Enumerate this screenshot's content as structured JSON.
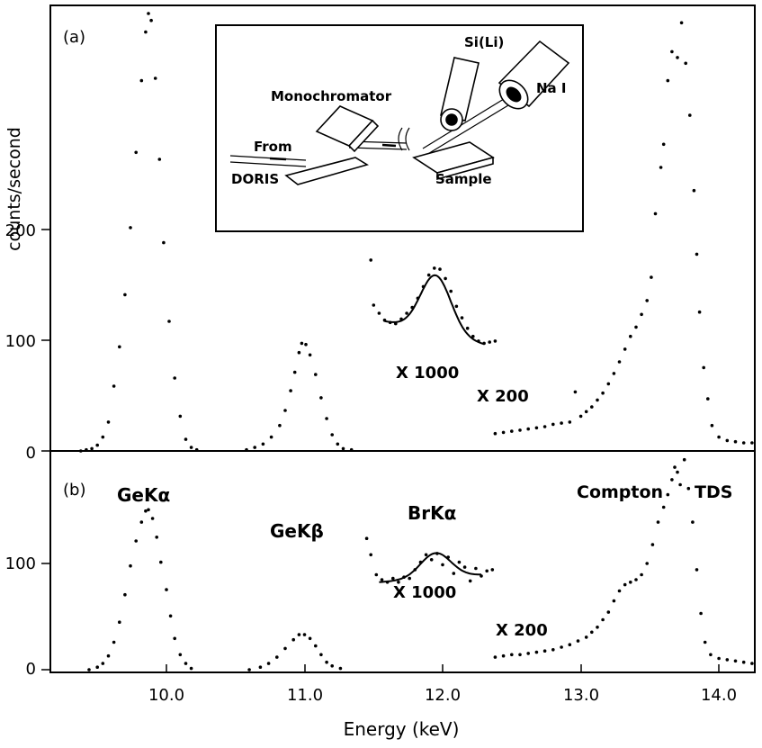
{
  "chart_data": [
    {
      "panel": "(a)",
      "type": "scatter",
      "xlabel": "",
      "ylabel": "counts/second",
      "xlim": [
        9.18,
        14.28
      ],
      "ylim": [
        0,
        385
      ],
      "yticks": [
        0,
        100,
        200
      ],
      "annotations": [
        "X 1000",
        "X 200"
      ],
      "inset_labels": {
        "from": "From",
        "doris": "DORIS",
        "monochromator": "Monochromator",
        "sample": "Sample",
        "sili": "Si(Li)",
        "nai": "Na I"
      },
      "series": [
        {
          "label": "GeKα",
          "points": [
            [
              9.4,
              0
            ],
            [
              9.44,
              1
            ],
            [
              9.48,
              2
            ],
            [
              9.52,
              5
            ],
            [
              9.56,
              12
            ],
            [
              9.6,
              25
            ],
            [
              9.64,
              56
            ],
            [
              9.68,
              90
            ],
            [
              9.72,
              135
            ],
            [
              9.76,
              193
            ],
            [
              9.8,
              258
            ],
            [
              9.84,
              320
            ],
            [
              9.87,
              362
            ],
            [
              9.89,
              378
            ],
            [
              9.91,
              372
            ],
            [
              9.94,
              322
            ],
            [
              9.97,
              252
            ],
            [
              10.0,
              180
            ],
            [
              10.04,
              112
            ],
            [
              10.08,
              63
            ],
            [
              10.12,
              30
            ],
            [
              10.16,
              10
            ],
            [
              10.2,
              3
            ],
            [
              10.24,
              1
            ]
          ]
        },
        {
          "label": "GeKβ",
          "points": [
            [
              10.6,
              1
            ],
            [
              10.66,
              3
            ],
            [
              10.72,
              6
            ],
            [
              10.78,
              12
            ],
            [
              10.84,
              22
            ],
            [
              10.88,
              35
            ],
            [
              10.92,
              52
            ],
            [
              10.95,
              68
            ],
            [
              10.98,
              85
            ],
            [
              11.0,
              93
            ],
            [
              11.03,
              92
            ],
            [
              11.06,
              83
            ],
            [
              11.1,
              66
            ],
            [
              11.14,
              46
            ],
            [
              11.18,
              28
            ],
            [
              11.22,
              14
            ],
            [
              11.26,
              6
            ],
            [
              11.3,
              2
            ],
            [
              11.36,
              1
            ]
          ]
        },
        {
          "label": "BrKα (x1000)",
          "points": [
            [
              11.5,
              165
            ],
            [
              11.52,
              126
            ],
            [
              11.56,
              119
            ],
            [
              11.6,
              113
            ],
            [
              11.64,
              111
            ],
            [
              11.68,
              110
            ],
            [
              11.72,
              114
            ],
            [
              11.76,
              119
            ],
            [
              11.8,
              124
            ],
            [
              11.84,
              132
            ],
            [
              11.88,
              142
            ],
            [
              11.92,
              152
            ],
            [
              11.96,
              158
            ],
            [
              12.0,
              157
            ],
            [
              12.04,
              149
            ],
            [
              12.08,
              138
            ],
            [
              12.12,
              125
            ],
            [
              12.16,
              115
            ],
            [
              12.2,
              106
            ],
            [
              12.24,
              99
            ],
            [
              12.28,
              95
            ],
            [
              12.32,
              93
            ],
            [
              12.36,
              94
            ],
            [
              12.4,
              95
            ]
          ]
        },
        {
          "label": "Compton + TDS (x200)",
          "points": [
            [
              12.4,
              15
            ],
            [
              12.46,
              16
            ],
            [
              12.52,
              17
            ],
            [
              12.58,
              18
            ],
            [
              12.64,
              19
            ],
            [
              12.7,
              20
            ],
            [
              12.76,
              21
            ],
            [
              12.82,
              23
            ],
            [
              12.88,
              24
            ],
            [
              12.94,
              25
            ],
            [
              12.98,
              51
            ],
            [
              13.02,
              30
            ],
            [
              13.06,
              34
            ],
            [
              13.1,
              38
            ],
            [
              13.14,
              44
            ],
            [
              13.18,
              50
            ],
            [
              13.22,
              58
            ],
            [
              13.26,
              67
            ],
            [
              13.3,
              77
            ],
            [
              13.34,
              88
            ],
            [
              13.38,
              99
            ],
            [
              13.42,
              107
            ],
            [
              13.46,
              118
            ],
            [
              13.5,
              130
            ],
            [
              13.53,
              150
            ],
            [
              13.56,
              205
            ],
            [
              13.6,
              245
            ],
            [
              13.62,
              265
            ],
            [
              13.65,
              320
            ],
            [
              13.68,
              345
            ],
            [
              13.72,
              340
            ],
            [
              13.75,
              370
            ],
            [
              13.78,
              335
            ],
            [
              13.81,
              290
            ],
            [
              13.84,
              225
            ],
            [
              13.86,
              170
            ],
            [
              13.88,
              120
            ],
            [
              13.91,
              72
            ],
            [
              13.94,
              45
            ],
            [
              13.97,
              22
            ],
            [
              14.02,
              12
            ],
            [
              14.08,
              9
            ],
            [
              14.14,
              8
            ],
            [
              14.2,
              7
            ],
            [
              14.26,
              7
            ]
          ]
        }
      ]
    },
    {
      "panel": "(b)",
      "type": "scatter",
      "xlabel": "Energy (keV)",
      "ylabel": "",
      "xlim": [
        9.18,
        14.28
      ],
      "ylim": [
        0,
        175
      ],
      "xticks": [
        10.0,
        11.0,
        12.0,
        13.0,
        14.0
      ],
      "yticks": [
        0,
        100
      ],
      "annotations": [
        "GeKα",
        "GeKβ",
        "BrKα",
        "X 1000",
        "X 200",
        "Compton",
        "TDS"
      ],
      "series": [
        {
          "label": "GeKα",
          "points": [
            [
              9.46,
              0
            ],
            [
              9.52,
              2
            ],
            [
              9.56,
              5
            ],
            [
              9.6,
              11
            ],
            [
              9.64,
              22
            ],
            [
              9.68,
              38
            ],
            [
              9.72,
              60
            ],
            [
              9.76,
              83
            ],
            [
              9.8,
              103
            ],
            [
              9.84,
              118
            ],
            [
              9.87,
              127
            ],
            [
              9.89,
              128
            ],
            [
              9.92,
              121
            ],
            [
              9.95,
              106
            ],
            [
              9.98,
              86
            ],
            [
              10.02,
              64
            ],
            [
              10.05,
              43
            ],
            [
              10.08,
              25
            ],
            [
              10.12,
              12
            ],
            [
              10.16,
              5
            ],
            [
              10.2,
              1
            ]
          ]
        },
        {
          "label": "GeKβ",
          "points": [
            [
              10.62,
              0
            ],
            [
              10.7,
              2
            ],
            [
              10.76,
              5
            ],
            [
              10.82,
              10
            ],
            [
              10.88,
              17
            ],
            [
              10.94,
              24
            ],
            [
              10.98,
              28
            ],
            [
              11.02,
              28
            ],
            [
              11.06,
              25
            ],
            [
              11.1,
              19
            ],
            [
              11.14,
              12
            ],
            [
              11.18,
              6
            ],
            [
              11.22,
              3
            ],
            [
              11.28,
              1
            ]
          ]
        },
        {
          "label": "BrKα (x1000)",
          "points": [
            [
              11.47,
              105
            ],
            [
              11.5,
              92
            ],
            [
              11.54,
              76
            ],
            [
              11.58,
              72
            ],
            [
              11.62,
              70
            ],
            [
              11.66,
              73
            ],
            [
              11.7,
              70
            ],
            [
              11.74,
              74
            ],
            [
              11.78,
              73
            ],
            [
              11.82,
              80
            ],
            [
              11.86,
              86
            ],
            [
              11.9,
              92
            ],
            [
              11.94,
              88
            ],
            [
              11.98,
              93
            ],
            [
              12.02,
              84
            ],
            [
              12.06,
              90
            ],
            [
              12.1,
              77
            ],
            [
              12.14,
              86
            ],
            [
              12.18,
              82
            ],
            [
              12.22,
              71
            ],
            [
              12.26,
              81
            ],
            [
              12.3,
              75
            ],
            [
              12.34,
              79
            ],
            [
              12.38,
              80
            ]
          ]
        },
        {
          "label": "Compton + TDS (x200)",
          "points": [
            [
              12.4,
              10
            ],
            [
              12.46,
              11
            ],
            [
              12.52,
              12
            ],
            [
              12.58,
              12
            ],
            [
              12.64,
              13
            ],
            [
              12.7,
              14
            ],
            [
              12.76,
              15
            ],
            [
              12.82,
              16
            ],
            [
              12.88,
              18
            ],
            [
              12.94,
              20
            ],
            [
              13.0,
              23
            ],
            [
              13.06,
              26
            ],
            [
              13.1,
              30
            ],
            [
              13.14,
              34
            ],
            [
              13.18,
              40
            ],
            [
              13.22,
              46
            ],
            [
              13.26,
              55
            ],
            [
              13.3,
              63
            ],
            [
              13.34,
              68
            ],
            [
              13.38,
              70
            ],
            [
              13.42,
              72
            ],
            [
              13.46,
              76
            ],
            [
              13.5,
              85
            ],
            [
              13.54,
              100
            ],
            [
              13.58,
              118
            ],
            [
              13.62,
              130
            ],
            [
              13.65,
              140
            ],
            [
              13.68,
              152
            ],
            [
              13.7,
              162
            ],
            [
              13.72,
              158
            ],
            [
              13.74,
              148
            ],
            [
              13.77,
              168
            ],
            [
              13.8,
              145
            ],
            [
              13.83,
              118
            ],
            [
              13.86,
              80
            ],
            [
              13.89,
              45
            ],
            [
              13.92,
              22
            ],
            [
              13.96,
              12
            ],
            [
              14.02,
              9
            ],
            [
              14.08,
              8
            ],
            [
              14.14,
              7
            ],
            [
              14.2,
              6
            ],
            [
              14.26,
              5
            ]
          ]
        }
      ]
    }
  ],
  "axes": {
    "x_tick_labels": [
      "10.0",
      "11.0",
      "12.0",
      "13.0",
      "14.0"
    ],
    "y_tick_labels_a": [
      "0",
      "100",
      "200"
    ],
    "y_tick_labels_b": [
      "0",
      "100"
    ]
  }
}
